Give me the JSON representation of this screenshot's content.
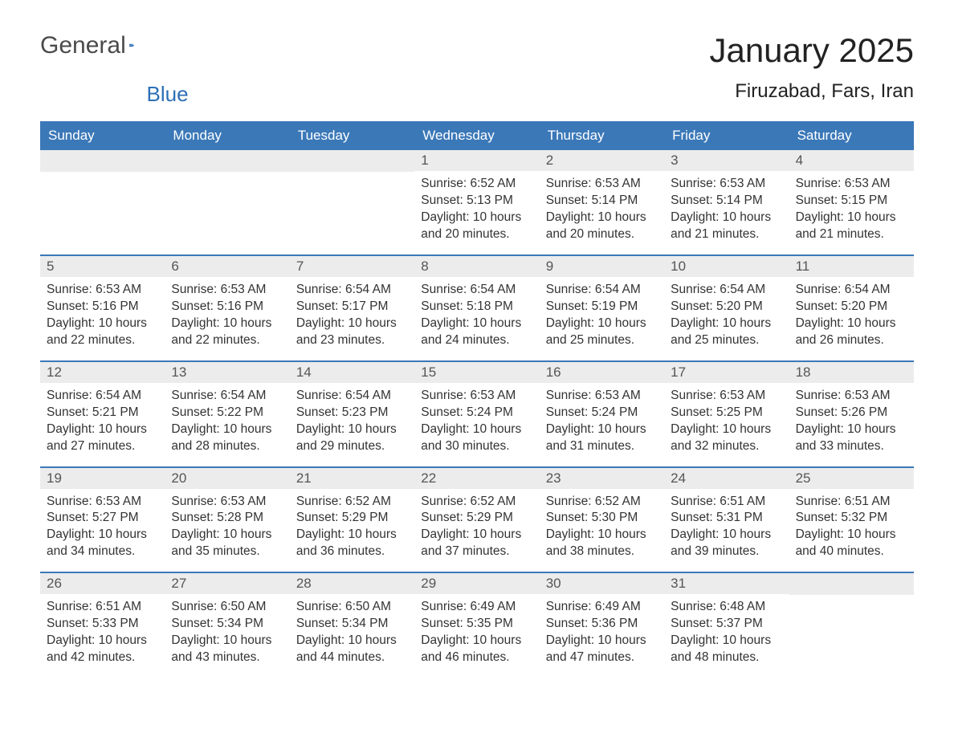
{
  "brand": {
    "wordA": "General",
    "wordB": "Blue"
  },
  "title": "January 2025",
  "location": "Firuzabad, Fars, Iran",
  "colors": {
    "header_bg": "#3b78b8",
    "header_text": "#ffffff",
    "daynum_bg": "#ececec",
    "week_divider": "#3b78b8",
    "body_text": "#333333",
    "page_bg": "#ffffff"
  },
  "weekdays": [
    "Sunday",
    "Monday",
    "Tuesday",
    "Wednesday",
    "Thursday",
    "Friday",
    "Saturday"
  ],
  "weeks": [
    [
      null,
      null,
      null,
      {
        "n": "1",
        "sunrise": "Sunrise: 6:52 AM",
        "sunset": "Sunset: 5:13 PM",
        "day1": "Daylight: 10 hours",
        "day2": "and 20 minutes."
      },
      {
        "n": "2",
        "sunrise": "Sunrise: 6:53 AM",
        "sunset": "Sunset: 5:14 PM",
        "day1": "Daylight: 10 hours",
        "day2": "and 20 minutes."
      },
      {
        "n": "3",
        "sunrise": "Sunrise: 6:53 AM",
        "sunset": "Sunset: 5:14 PM",
        "day1": "Daylight: 10 hours",
        "day2": "and 21 minutes."
      },
      {
        "n": "4",
        "sunrise": "Sunrise: 6:53 AM",
        "sunset": "Sunset: 5:15 PM",
        "day1": "Daylight: 10 hours",
        "day2": "and 21 minutes."
      }
    ],
    [
      {
        "n": "5",
        "sunrise": "Sunrise: 6:53 AM",
        "sunset": "Sunset: 5:16 PM",
        "day1": "Daylight: 10 hours",
        "day2": "and 22 minutes."
      },
      {
        "n": "6",
        "sunrise": "Sunrise: 6:53 AM",
        "sunset": "Sunset: 5:16 PM",
        "day1": "Daylight: 10 hours",
        "day2": "and 22 minutes."
      },
      {
        "n": "7",
        "sunrise": "Sunrise: 6:54 AM",
        "sunset": "Sunset: 5:17 PM",
        "day1": "Daylight: 10 hours",
        "day2": "and 23 minutes."
      },
      {
        "n": "8",
        "sunrise": "Sunrise: 6:54 AM",
        "sunset": "Sunset: 5:18 PM",
        "day1": "Daylight: 10 hours",
        "day2": "and 24 minutes."
      },
      {
        "n": "9",
        "sunrise": "Sunrise: 6:54 AM",
        "sunset": "Sunset: 5:19 PM",
        "day1": "Daylight: 10 hours",
        "day2": "and 25 minutes."
      },
      {
        "n": "10",
        "sunrise": "Sunrise: 6:54 AM",
        "sunset": "Sunset: 5:20 PM",
        "day1": "Daylight: 10 hours",
        "day2": "and 25 minutes."
      },
      {
        "n": "11",
        "sunrise": "Sunrise: 6:54 AM",
        "sunset": "Sunset: 5:20 PM",
        "day1": "Daylight: 10 hours",
        "day2": "and 26 minutes."
      }
    ],
    [
      {
        "n": "12",
        "sunrise": "Sunrise: 6:54 AM",
        "sunset": "Sunset: 5:21 PM",
        "day1": "Daylight: 10 hours",
        "day2": "and 27 minutes."
      },
      {
        "n": "13",
        "sunrise": "Sunrise: 6:54 AM",
        "sunset": "Sunset: 5:22 PM",
        "day1": "Daylight: 10 hours",
        "day2": "and 28 minutes."
      },
      {
        "n": "14",
        "sunrise": "Sunrise: 6:54 AM",
        "sunset": "Sunset: 5:23 PM",
        "day1": "Daylight: 10 hours",
        "day2": "and 29 minutes."
      },
      {
        "n": "15",
        "sunrise": "Sunrise: 6:53 AM",
        "sunset": "Sunset: 5:24 PM",
        "day1": "Daylight: 10 hours",
        "day2": "and 30 minutes."
      },
      {
        "n": "16",
        "sunrise": "Sunrise: 6:53 AM",
        "sunset": "Sunset: 5:24 PM",
        "day1": "Daylight: 10 hours",
        "day2": "and 31 minutes."
      },
      {
        "n": "17",
        "sunrise": "Sunrise: 6:53 AM",
        "sunset": "Sunset: 5:25 PM",
        "day1": "Daylight: 10 hours",
        "day2": "and 32 minutes."
      },
      {
        "n": "18",
        "sunrise": "Sunrise: 6:53 AM",
        "sunset": "Sunset: 5:26 PM",
        "day1": "Daylight: 10 hours",
        "day2": "and 33 minutes."
      }
    ],
    [
      {
        "n": "19",
        "sunrise": "Sunrise: 6:53 AM",
        "sunset": "Sunset: 5:27 PM",
        "day1": "Daylight: 10 hours",
        "day2": "and 34 minutes."
      },
      {
        "n": "20",
        "sunrise": "Sunrise: 6:53 AM",
        "sunset": "Sunset: 5:28 PM",
        "day1": "Daylight: 10 hours",
        "day2": "and 35 minutes."
      },
      {
        "n": "21",
        "sunrise": "Sunrise: 6:52 AM",
        "sunset": "Sunset: 5:29 PM",
        "day1": "Daylight: 10 hours",
        "day2": "and 36 minutes."
      },
      {
        "n": "22",
        "sunrise": "Sunrise: 6:52 AM",
        "sunset": "Sunset: 5:29 PM",
        "day1": "Daylight: 10 hours",
        "day2": "and 37 minutes."
      },
      {
        "n": "23",
        "sunrise": "Sunrise: 6:52 AM",
        "sunset": "Sunset: 5:30 PM",
        "day1": "Daylight: 10 hours",
        "day2": "and 38 minutes."
      },
      {
        "n": "24",
        "sunrise": "Sunrise: 6:51 AM",
        "sunset": "Sunset: 5:31 PM",
        "day1": "Daylight: 10 hours",
        "day2": "and 39 minutes."
      },
      {
        "n": "25",
        "sunrise": "Sunrise: 6:51 AM",
        "sunset": "Sunset: 5:32 PM",
        "day1": "Daylight: 10 hours",
        "day2": "and 40 minutes."
      }
    ],
    [
      {
        "n": "26",
        "sunrise": "Sunrise: 6:51 AM",
        "sunset": "Sunset: 5:33 PM",
        "day1": "Daylight: 10 hours",
        "day2": "and 42 minutes."
      },
      {
        "n": "27",
        "sunrise": "Sunrise: 6:50 AM",
        "sunset": "Sunset: 5:34 PM",
        "day1": "Daylight: 10 hours",
        "day2": "and 43 minutes."
      },
      {
        "n": "28",
        "sunrise": "Sunrise: 6:50 AM",
        "sunset": "Sunset: 5:34 PM",
        "day1": "Daylight: 10 hours",
        "day2": "and 44 minutes."
      },
      {
        "n": "29",
        "sunrise": "Sunrise: 6:49 AM",
        "sunset": "Sunset: 5:35 PM",
        "day1": "Daylight: 10 hours",
        "day2": "and 46 minutes."
      },
      {
        "n": "30",
        "sunrise": "Sunrise: 6:49 AM",
        "sunset": "Sunset: 5:36 PM",
        "day1": "Daylight: 10 hours",
        "day2": "and 47 minutes."
      },
      {
        "n": "31",
        "sunrise": "Sunrise: 6:48 AM",
        "sunset": "Sunset: 5:37 PM",
        "day1": "Daylight: 10 hours",
        "day2": "and 48 minutes."
      },
      null
    ]
  ]
}
